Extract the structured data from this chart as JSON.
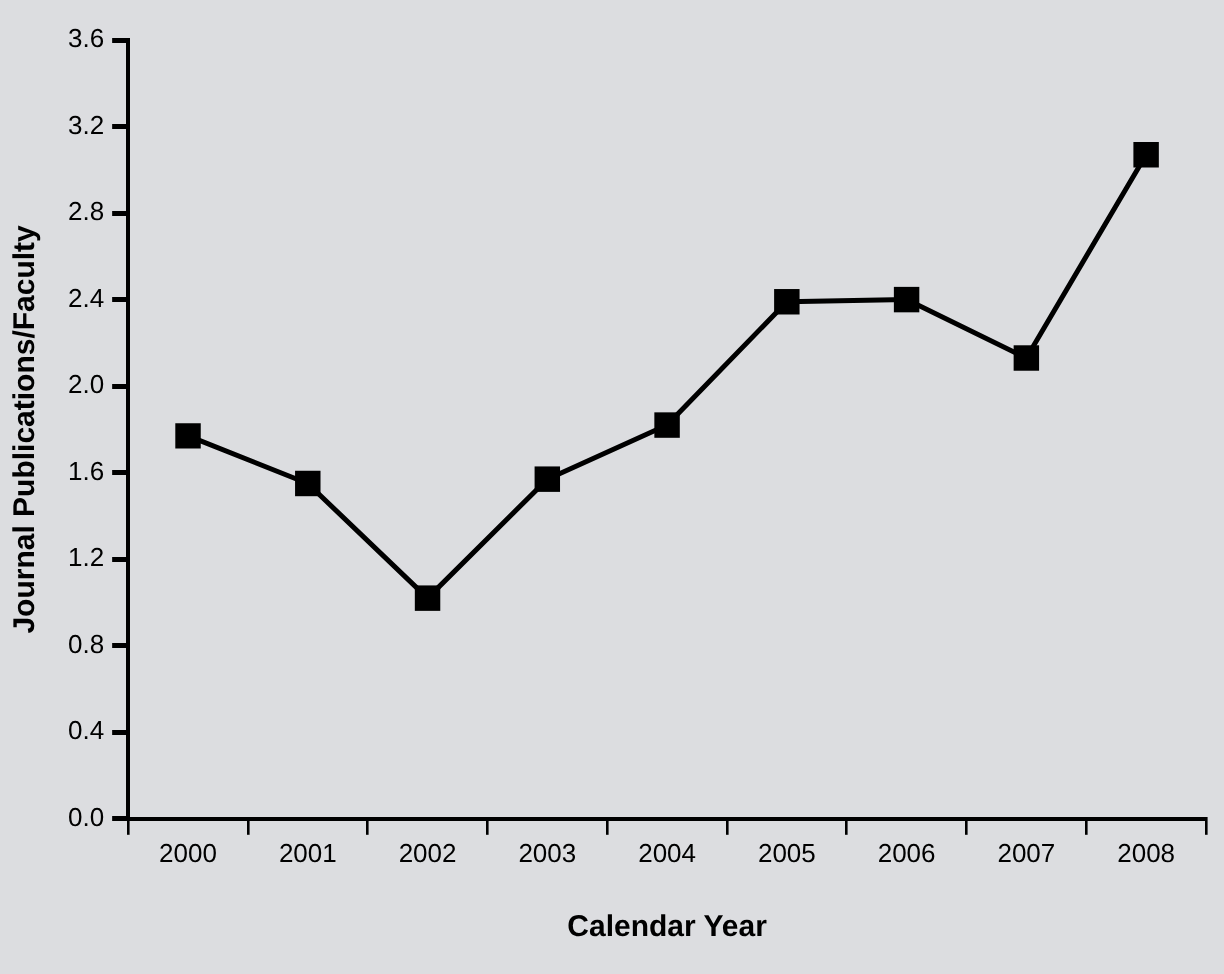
{
  "chart_data": {
    "type": "line",
    "xlabel": "Calendar Year",
    "ylabel": "Journal Publications/Faculty",
    "categories": [
      "2000",
      "2001",
      "2002",
      "2003",
      "2004",
      "2005",
      "2006",
      "2007",
      "2008"
    ],
    "series": [
      {
        "color": "#000000",
        "values": [
          1.77,
          1.55,
          1.02,
          1.57,
          1.82,
          2.39,
          2.4,
          2.13,
          3.07
        ]
      }
    ],
    "ylim": [
      0,
      3.6
    ],
    "yticks": [
      {
        "value": 0,
        "label": "0.0"
      },
      0.4,
      0.8,
      1.2,
      1.6,
      {
        "value": 2,
        "label": "2.0"
      },
      2.4,
      2.8,
      3.2,
      3.6
    ],
    "grid": false,
    "legend": false,
    "marker": "square",
    "line_style": "solid"
  }
}
